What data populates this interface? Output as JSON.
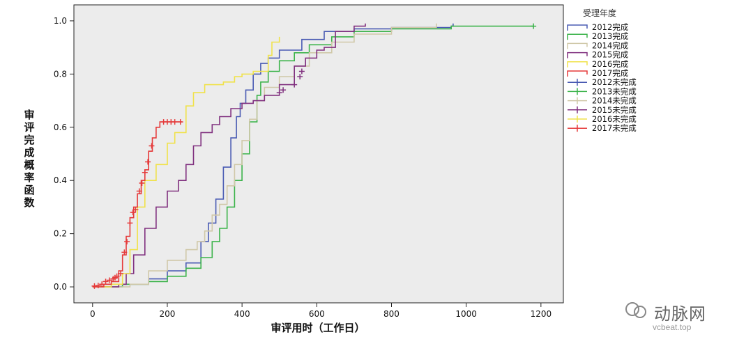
{
  "chart_data": {
    "type": "line",
    "title": "",
    "xlabel": "审评用时（工作日）",
    "ylabel": "审评完成概率函数",
    "xlim": [
      -50,
      1260
    ],
    "ylim": [
      -0.06,
      1.06
    ],
    "xticks": [
      0,
      200,
      400,
      600,
      800,
      1000,
      1200
    ],
    "yticks": [
      0.0,
      0.2,
      0.4,
      0.6,
      0.8,
      1.0
    ],
    "xtick_labels": [
      "0",
      "200",
      "400",
      "600",
      "800",
      "1000",
      "1200"
    ],
    "ytick_labels": [
      "0.0",
      "0.2",
      "0.4",
      "0.6",
      "0.8",
      "1.0"
    ],
    "grid": false,
    "legend_title": "受理年度",
    "legend_position": "right",
    "series": [
      {
        "name": "2012完成",
        "color": "#4a5bb3",
        "points": [
          [
            0,
            0
          ],
          [
            80,
            0.01
          ],
          [
            150,
            0.03
          ],
          [
            200,
            0.06
          ],
          [
            250,
            0.09
          ],
          [
            290,
            0.17
          ],
          [
            310,
            0.24
          ],
          [
            330,
            0.33
          ],
          [
            350,
            0.45
          ],
          [
            370,
            0.56
          ],
          [
            385,
            0.64
          ],
          [
            395,
            0.69
          ],
          [
            410,
            0.74
          ],
          [
            430,
            0.8
          ],
          [
            450,
            0.84
          ],
          [
            470,
            0.86
          ],
          [
            500,
            0.89
          ],
          [
            560,
            0.93
          ],
          [
            620,
            0.96
          ],
          [
            700,
            0.97
          ],
          [
            800,
            0.975
          ],
          [
            960,
            0.98
          ],
          [
            965,
            0.99
          ]
        ]
      },
      {
        "name": "2013完成",
        "color": "#3bb34a",
        "points": [
          [
            0,
            0
          ],
          [
            80,
            0.01
          ],
          [
            150,
            0.02
          ],
          [
            200,
            0.04
          ],
          [
            250,
            0.07
          ],
          [
            290,
            0.11
          ],
          [
            320,
            0.17
          ],
          [
            340,
            0.22
          ],
          [
            360,
            0.3
          ],
          [
            380,
            0.4
          ],
          [
            400,
            0.5
          ],
          [
            420,
            0.62
          ],
          [
            440,
            0.72
          ],
          [
            450,
            0.77
          ],
          [
            470,
            0.81
          ],
          [
            500,
            0.85
          ],
          [
            540,
            0.88
          ],
          [
            580,
            0.91
          ],
          [
            640,
            0.94
          ],
          [
            700,
            0.96
          ],
          [
            800,
            0.97
          ],
          [
            960,
            0.98
          ],
          [
            1180,
            0.98
          ]
        ]
      },
      {
        "name": "2014完成",
        "color": "#d0c8a8",
        "points": [
          [
            0,
            0
          ],
          [
            100,
            0.01
          ],
          [
            150,
            0.06
          ],
          [
            200,
            0.1
          ],
          [
            250,
            0.14
          ],
          [
            280,
            0.17
          ],
          [
            300,
            0.21
          ],
          [
            320,
            0.27
          ],
          [
            340,
            0.31
          ],
          [
            360,
            0.38
          ],
          [
            380,
            0.46
          ],
          [
            400,
            0.55
          ],
          [
            420,
            0.63
          ],
          [
            440,
            0.7
          ],
          [
            460,
            0.75
          ],
          [
            500,
            0.79
          ],
          [
            540,
            0.83
          ],
          [
            580,
            0.88
          ],
          [
            640,
            0.92
          ],
          [
            700,
            0.95
          ],
          [
            800,
            0.975
          ],
          [
            920,
            0.99
          ]
        ]
      },
      {
        "name": "2015完成",
        "color": "#80307f",
        "points": [
          [
            0,
            0
          ],
          [
            70,
            0.01
          ],
          [
            90,
            0.05
          ],
          [
            110,
            0.12
          ],
          [
            140,
            0.22
          ],
          [
            170,
            0.3
          ],
          [
            200,
            0.36
          ],
          [
            230,
            0.4
          ],
          [
            250,
            0.46
          ],
          [
            270,
            0.53
          ],
          [
            290,
            0.58
          ],
          [
            320,
            0.61
          ],
          [
            340,
            0.64
          ],
          [
            370,
            0.67
          ],
          [
            400,
            0.69
          ],
          [
            430,
            0.7
          ],
          [
            460,
            0.72
          ],
          [
            500,
            0.76
          ],
          [
            540,
            0.83
          ],
          [
            570,
            0.86
          ],
          [
            600,
            0.89
          ],
          [
            620,
            0.9
          ],
          [
            650,
            0.96
          ],
          [
            700,
            0.98
          ],
          [
            730,
            0.99
          ]
        ]
      },
      {
        "name": "2016完成",
        "color": "#f0e24a",
        "points": [
          [
            0,
            0
          ],
          [
            50,
            0.01
          ],
          [
            80,
            0.05
          ],
          [
            100,
            0.14
          ],
          [
            120,
            0.3
          ],
          [
            140,
            0.4
          ],
          [
            170,
            0.46
          ],
          [
            200,
            0.54
          ],
          [
            220,
            0.58
          ],
          [
            250,
            0.68
          ],
          [
            270,
            0.73
          ],
          [
            300,
            0.76
          ],
          [
            350,
            0.77
          ],
          [
            380,
            0.79
          ],
          [
            400,
            0.8
          ],
          [
            430,
            0.81
          ],
          [
            470,
            0.87
          ],
          [
            480,
            0.92
          ],
          [
            500,
            0.94
          ]
        ]
      },
      {
        "name": "2017完成",
        "color": "#e53a3a",
        "points": [
          [
            0,
            0
          ],
          [
            30,
            0.01
          ],
          [
            50,
            0.02
          ],
          [
            70,
            0.06
          ],
          [
            80,
            0.12
          ],
          [
            90,
            0.19
          ],
          [
            100,
            0.26
          ],
          [
            110,
            0.3
          ],
          [
            120,
            0.35
          ],
          [
            130,
            0.4
          ],
          [
            140,
            0.44
          ],
          [
            150,
            0.51
          ],
          [
            160,
            0.56
          ],
          [
            170,
            0.6
          ],
          [
            180,
            0.62
          ],
          [
            240,
            0.62
          ]
        ]
      }
    ],
    "censored_markers": [
      {
        "name": "2012未完成",
        "color": "#4a5bb3",
        "points": []
      },
      {
        "name": "2013未完成",
        "color": "#3bb34a",
        "points": [
          [
            1180,
            0.98
          ]
        ]
      },
      {
        "name": "2014未完成",
        "color": "#d0c8a8",
        "points": []
      },
      {
        "name": "2015未完成",
        "color": "#80307f",
        "points": [
          [
            500,
            0.73
          ],
          [
            510,
            0.74
          ],
          [
            540,
            0.76
          ],
          [
            555,
            0.79
          ],
          [
            560,
            0.81
          ]
        ]
      },
      {
        "name": "2016未完成",
        "color": "#f0e24a",
        "points": []
      },
      {
        "name": "2017未完成",
        "color": "#e53a3a",
        "points": [
          [
            5,
            0.003
          ],
          [
            15,
            0.005
          ],
          [
            25,
            0.01
          ],
          [
            35,
            0.02
          ],
          [
            45,
            0.025
          ],
          [
            55,
            0.03
          ],
          [
            60,
            0.035
          ],
          [
            65,
            0.04
          ],
          [
            75,
            0.05
          ],
          [
            85,
            0.13
          ],
          [
            92,
            0.17
          ],
          [
            100,
            0.24
          ],
          [
            108,
            0.28
          ],
          [
            115,
            0.29
          ],
          [
            125,
            0.36
          ],
          [
            132,
            0.39
          ],
          [
            140,
            0.43
          ],
          [
            148,
            0.47
          ],
          [
            158,
            0.53
          ],
          [
            190,
            0.62
          ],
          [
            200,
            0.62
          ],
          [
            210,
            0.62
          ],
          [
            220,
            0.62
          ],
          [
            235,
            0.62
          ]
        ]
      }
    ]
  },
  "watermark": {
    "brand": "动脉网",
    "url": "vcbeat.top"
  }
}
